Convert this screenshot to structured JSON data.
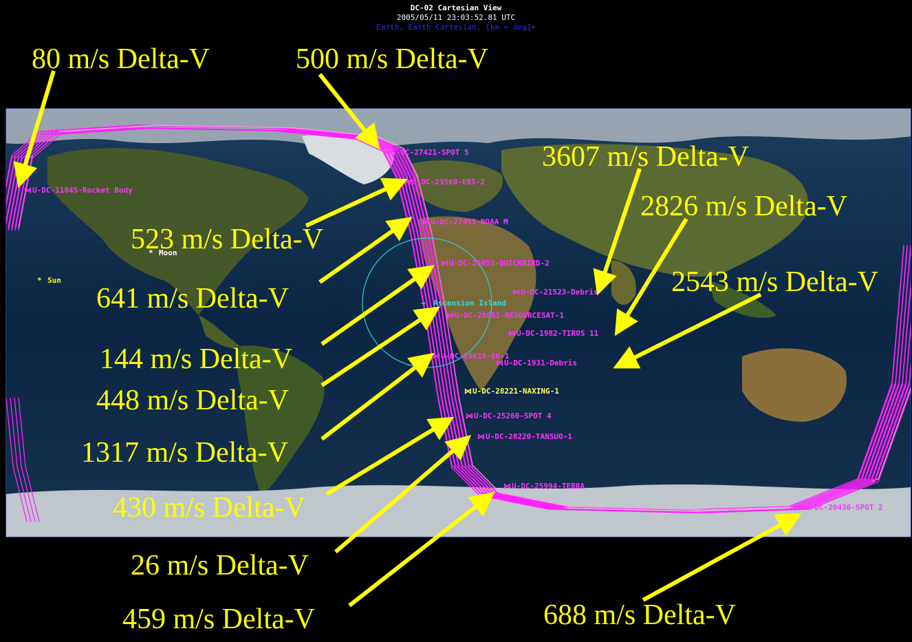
{
  "header": {
    "title": "DC-02 Cartesian View",
    "timestamp": "2005/05/11 23:03:52.81 UTC",
    "subtitle": "Earth,  Earth Cartesian,  [km = deg]+"
  },
  "colors": {
    "orbit": "#ff22ff",
    "orbit_alt": "#ff99dd",
    "arrow": "#ffff00",
    "annotation_text": "#ffff00",
    "sat_label": "#ff33ff",
    "naxing_label": "#ffff66",
    "ascension_label": "#33dddd",
    "ocean": "#0d2a4a",
    "land": "#3b4a22",
    "ice": "#c8ccd0"
  },
  "map": {
    "celestial": [
      {
        "name": "Moon",
        "color": "#ffffff"
      },
      {
        "name": "Sun",
        "color": "#ffff00"
      }
    ],
    "ground_station": {
      "name": "Ascension Island",
      "color": "#33dddd"
    },
    "satellites": [
      {
        "label": "U-DC-11845-Rocket Body"
      },
      {
        "label": "U-DC-27421-SPOT 5"
      },
      {
        "label": "U-DC-23560-ERS-2"
      },
      {
        "label": "U-DC-27453-NOAA M"
      },
      {
        "label": "U-DC-26953-QUICKBIRD-2"
      },
      {
        "label": "U-DC-21523-Debris"
      },
      {
        "label": "U-DC-28051-RESOURCESAT-1"
      },
      {
        "label": "U-DC-1982-TIROS 11"
      },
      {
        "label": "U-DC-26619-EO-1"
      },
      {
        "label": "U-DC-1931-Debris"
      },
      {
        "label": "U-DC-28221-NAXING-1"
      },
      {
        "label": "U-DC-25260-SPOT 4"
      },
      {
        "label": "U-DC-28220-TANSUO-1"
      },
      {
        "label": "U-DC-25994-TERRA"
      },
      {
        "label": "U-DC-20436-SPOT 2"
      }
    ]
  },
  "annotations": [
    {
      "text": "80 m/s Delta-V"
    },
    {
      "text": "500 m/s Delta-V"
    },
    {
      "text": "3607 m/s Delta-V"
    },
    {
      "text": "2826 m/s Delta-V"
    },
    {
      "text": "523 m/s Delta-V"
    },
    {
      "text": "2543 m/s Delta-V"
    },
    {
      "text": "641 m/s Delta-V"
    },
    {
      "text": "144 m/s Delta-V"
    },
    {
      "text": "448 m/s Delta-V"
    },
    {
      "text": "1317 m/s Delta-V"
    },
    {
      "text": "430 m/s Delta-V"
    },
    {
      "text": "26 m/s Delta-V"
    },
    {
      "text": "459 m/s Delta-V"
    },
    {
      "text": "688 m/s Delta-V"
    }
  ]
}
